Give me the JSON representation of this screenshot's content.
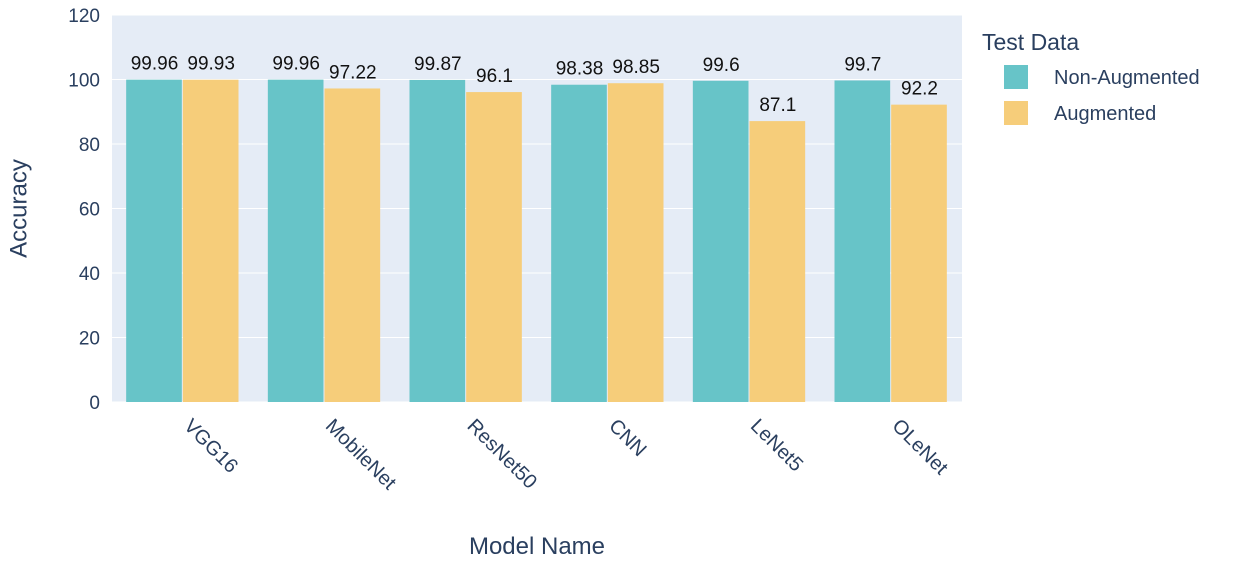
{
  "chart_data": {
    "type": "bar",
    "barmode": "group",
    "categories": [
      "VGG16",
      "MobileNet",
      "ResNet50",
      "CNN",
      "LeNet5",
      "OLeNet"
    ],
    "series": [
      {
        "name": "Non-Augmented",
        "color": "#67c4c8",
        "values": [
          99.96,
          99.96,
          99.87,
          98.38,
          99.6,
          99.7
        ],
        "value_labels": [
          "99.96",
          "99.96",
          "99.87",
          "98.38",
          "99.6",
          "99.7"
        ]
      },
      {
        "name": "Augmented",
        "color": "#f6cd7a",
        "values": [
          99.93,
          97.22,
          96.1,
          98.85,
          87.1,
          92.2
        ],
        "value_labels": [
          "99.93",
          "97.22",
          "96.1",
          "98.85",
          "87.1",
          "92.2"
        ]
      }
    ],
    "xlabel": "Model Name",
    "ylabel": "Accuracy",
    "ylim": [
      0,
      120
    ],
    "yticks": [
      "0",
      "20",
      "40",
      "60",
      "80",
      "100",
      "120"
    ],
    "legend_title": "Test Data",
    "legend_position": "top-right, outside plot",
    "grid": true,
    "plot_background": "#e5ecf6"
  }
}
